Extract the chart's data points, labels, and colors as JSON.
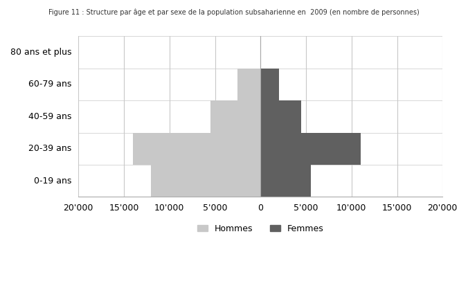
{
  "age_groups": [
    "0-19 ans",
    "20-39 ans",
    "40-59 ans",
    "60-79 ans",
    "80 ans et plus"
  ],
  "hommes": [
    12000,
    14000,
    5500,
    2500,
    0
  ],
  "femmes": [
    5500,
    11000,
    4500,
    2000,
    0
  ],
  "hommes_color": "#c8c8c8",
  "femmes_color": "#606060",
  "xlim": [
    -20000,
    20000
  ],
  "xticks": [
    -20000,
    -15000,
    -10000,
    -5000,
    0,
    5000,
    10000,
    15000,
    20000
  ],
  "xtick_labels": [
    "20'000",
    "15'000",
    "10'000",
    "5'000",
    "0",
    "5'000",
    "10'000",
    "15'000",
    "20'000"
  ],
  "legend_hommes": "Hommes",
  "legend_femmes": "Femmes",
  "bar_height": 1.0,
  "title": "Figure 11 : Structure par âge et par sexe de la population subsaharienne en  2009 (en nombre de personnes)",
  "background_color": "#ffffff",
  "grid_color": "#c8c8c8"
}
